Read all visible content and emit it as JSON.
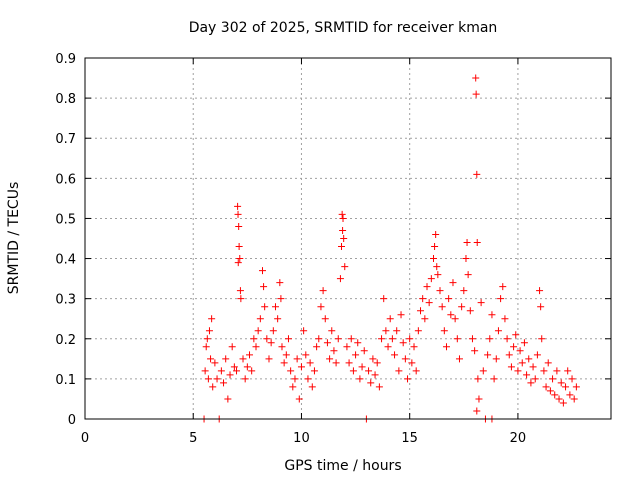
{
  "chart_data": {
    "type": "scatter",
    "title": "Day 302 of 2025, SRMTID for receiver kman",
    "xlabel": "GPS time / hours",
    "ylabel": "SRMTID / TECUs",
    "xlim": [
      0,
      24.3
    ],
    "ylim": [
      0,
      0.9
    ],
    "xticks": [
      0,
      5,
      10,
      15,
      20
    ],
    "yticks": [
      0,
      0.1,
      0.2,
      0.3,
      0.4,
      0.5,
      0.6,
      0.7,
      0.8,
      0.9
    ],
    "xtick_labels": [
      "0",
      "5",
      "10",
      "15",
      "20"
    ],
    "ytick_labels": [
      "0",
      "0.1",
      "0.2",
      "0.3",
      "0.4",
      "0.5",
      "0.6",
      "0.7",
      "0.8",
      "0.9"
    ],
    "grid": true,
    "marker": "+",
    "color": "#ff0000",
    "series": [
      {
        "name": "SRMTID",
        "points": [
          [
            5.5,
            0.0
          ],
          [
            6.2,
            0.0
          ],
          [
            13.0,
            0.0
          ],
          [
            18.5,
            0.0
          ],
          [
            18.8,
            0.0
          ],
          [
            5.55,
            0.12
          ],
          [
            5.6,
            0.18
          ],
          [
            5.65,
            0.2
          ],
          [
            5.7,
            0.1
          ],
          [
            5.75,
            0.22
          ],
          [
            5.8,
            0.15
          ],
          [
            5.85,
            0.25
          ],
          [
            5.9,
            0.08
          ],
          [
            6.0,
            0.14
          ],
          [
            6.1,
            0.1
          ],
          [
            6.3,
            0.12
          ],
          [
            6.4,
            0.09
          ],
          [
            6.5,
            0.15
          ],
          [
            6.6,
            0.05
          ],
          [
            6.7,
            0.11
          ],
          [
            6.8,
            0.18
          ],
          [
            6.9,
            0.13
          ],
          [
            7.0,
            0.12
          ],
          [
            7.05,
            0.53
          ],
          [
            7.07,
            0.51
          ],
          [
            7.1,
            0.48
          ],
          [
            7.12,
            0.43
          ],
          [
            7.15,
            0.4
          ],
          [
            7.08,
            0.39
          ],
          [
            7.18,
            0.32
          ],
          [
            7.2,
            0.3
          ],
          [
            7.3,
            0.15
          ],
          [
            7.4,
            0.1
          ],
          [
            7.5,
            0.13
          ],
          [
            7.6,
            0.16
          ],
          [
            7.7,
            0.12
          ],
          [
            7.8,
            0.2
          ],
          [
            7.9,
            0.18
          ],
          [
            8.0,
            0.22
          ],
          [
            8.1,
            0.25
          ],
          [
            8.2,
            0.37
          ],
          [
            8.25,
            0.33
          ],
          [
            8.3,
            0.28
          ],
          [
            8.4,
            0.2
          ],
          [
            8.5,
            0.15
          ],
          [
            8.6,
            0.19
          ],
          [
            8.7,
            0.22
          ],
          [
            8.8,
            0.28
          ],
          [
            8.9,
            0.25
          ],
          [
            9.0,
            0.34
          ],
          [
            9.05,
            0.3
          ],
          [
            9.1,
            0.18
          ],
          [
            9.2,
            0.14
          ],
          [
            9.3,
            0.16
          ],
          [
            9.4,
            0.2
          ],
          [
            9.5,
            0.12
          ],
          [
            9.6,
            0.08
          ],
          [
            9.7,
            0.1
          ],
          [
            9.8,
            0.15
          ],
          [
            9.9,
            0.05
          ],
          [
            10.0,
            0.13
          ],
          [
            10.1,
            0.22
          ],
          [
            10.2,
            0.16
          ],
          [
            10.3,
            0.1
          ],
          [
            10.4,
            0.14
          ],
          [
            10.5,
            0.08
          ],
          [
            10.6,
            0.12
          ],
          [
            10.7,
            0.18
          ],
          [
            10.8,
            0.2
          ],
          [
            10.9,
            0.28
          ],
          [
            11.0,
            0.32
          ],
          [
            11.1,
            0.25
          ],
          [
            11.2,
            0.19
          ],
          [
            11.3,
            0.15
          ],
          [
            11.4,
            0.22
          ],
          [
            11.5,
            0.17
          ],
          [
            11.6,
            0.14
          ],
          [
            11.7,
            0.2
          ],
          [
            11.8,
            0.35
          ],
          [
            11.85,
            0.43
          ],
          [
            11.9,
            0.47
          ],
          [
            11.92,
            0.5
          ],
          [
            11.88,
            0.51
          ],
          [
            11.95,
            0.45
          ],
          [
            12.0,
            0.38
          ],
          [
            12.1,
            0.18
          ],
          [
            12.2,
            0.14
          ],
          [
            12.3,
            0.2
          ],
          [
            12.4,
            0.12
          ],
          [
            12.5,
            0.16
          ],
          [
            12.6,
            0.19
          ],
          [
            12.7,
            0.1
          ],
          [
            12.8,
            0.13
          ],
          [
            12.9,
            0.17
          ],
          [
            13.1,
            0.12
          ],
          [
            13.2,
            0.09
          ],
          [
            13.3,
            0.15
          ],
          [
            13.4,
            0.11
          ],
          [
            13.5,
            0.14
          ],
          [
            13.6,
            0.08
          ],
          [
            13.7,
            0.2
          ],
          [
            13.8,
            0.3
          ],
          [
            13.9,
            0.22
          ],
          [
            14.0,
            0.18
          ],
          [
            14.1,
            0.25
          ],
          [
            14.2,
            0.2
          ],
          [
            14.3,
            0.16
          ],
          [
            14.4,
            0.22
          ],
          [
            14.5,
            0.12
          ],
          [
            14.6,
            0.26
          ],
          [
            14.7,
            0.19
          ],
          [
            14.8,
            0.15
          ],
          [
            14.9,
            0.1
          ],
          [
            15.0,
            0.2
          ],
          [
            15.1,
            0.14
          ],
          [
            15.2,
            0.18
          ],
          [
            15.3,
            0.12
          ],
          [
            15.4,
            0.22
          ],
          [
            15.5,
            0.27
          ],
          [
            15.6,
            0.3
          ],
          [
            15.7,
            0.25
          ],
          [
            15.8,
            0.33
          ],
          [
            15.9,
            0.29
          ],
          [
            16.0,
            0.35
          ],
          [
            16.1,
            0.4
          ],
          [
            16.15,
            0.43
          ],
          [
            16.2,
            0.46
          ],
          [
            16.25,
            0.38
          ],
          [
            16.3,
            0.36
          ],
          [
            16.4,
            0.32
          ],
          [
            16.5,
            0.28
          ],
          [
            16.6,
            0.22
          ],
          [
            16.7,
            0.18
          ],
          [
            16.8,
            0.3
          ],
          [
            16.9,
            0.26
          ],
          [
            17.0,
            0.34
          ],
          [
            17.1,
            0.25
          ],
          [
            17.2,
            0.2
          ],
          [
            17.3,
            0.15
          ],
          [
            17.4,
            0.28
          ],
          [
            17.5,
            0.32
          ],
          [
            17.6,
            0.4
          ],
          [
            17.65,
            0.44
          ],
          [
            17.7,
            0.36
          ],
          [
            17.8,
            0.27
          ],
          [
            17.9,
            0.2
          ],
          [
            18.0,
            0.17
          ],
          [
            18.05,
            0.85
          ],
          [
            18.07,
            0.81
          ],
          [
            18.1,
            0.61
          ],
          [
            18.12,
            0.44
          ],
          [
            18.15,
            0.1
          ],
          [
            18.2,
            0.05
          ],
          [
            18.1,
            0.02
          ],
          [
            18.3,
            0.29
          ],
          [
            18.4,
            0.12
          ],
          [
            18.6,
            0.16
          ],
          [
            18.7,
            0.2
          ],
          [
            18.8,
            0.26
          ],
          [
            18.9,
            0.1
          ],
          [
            19.0,
            0.15
          ],
          [
            19.1,
            0.22
          ],
          [
            19.2,
            0.3
          ],
          [
            19.3,
            0.33
          ],
          [
            19.4,
            0.25
          ],
          [
            19.5,
            0.2
          ],
          [
            19.6,
            0.16
          ],
          [
            19.7,
            0.13
          ],
          [
            19.8,
            0.18
          ],
          [
            19.9,
            0.21
          ],
          [
            20.0,
            0.12
          ],
          [
            20.1,
            0.17
          ],
          [
            20.2,
            0.14
          ],
          [
            20.3,
            0.19
          ],
          [
            20.4,
            0.11
          ],
          [
            20.5,
            0.15
          ],
          [
            20.6,
            0.09
          ],
          [
            20.7,
            0.13
          ],
          [
            20.8,
            0.1
          ],
          [
            20.9,
            0.16
          ],
          [
            21.0,
            0.32
          ],
          [
            21.05,
            0.28
          ],
          [
            21.1,
            0.2
          ],
          [
            21.2,
            0.12
          ],
          [
            21.3,
            0.08
          ],
          [
            21.4,
            0.14
          ],
          [
            21.5,
            0.07
          ],
          [
            21.6,
            0.1
          ],
          [
            21.7,
            0.06
          ],
          [
            21.8,
            0.12
          ],
          [
            21.9,
            0.05
          ],
          [
            22.0,
            0.09
          ],
          [
            22.1,
            0.04
          ],
          [
            22.2,
            0.08
          ],
          [
            22.3,
            0.12
          ],
          [
            22.4,
            0.06
          ],
          [
            22.5,
            0.1
          ],
          [
            22.6,
            0.05
          ],
          [
            22.7,
            0.08
          ]
        ]
      }
    ]
  }
}
